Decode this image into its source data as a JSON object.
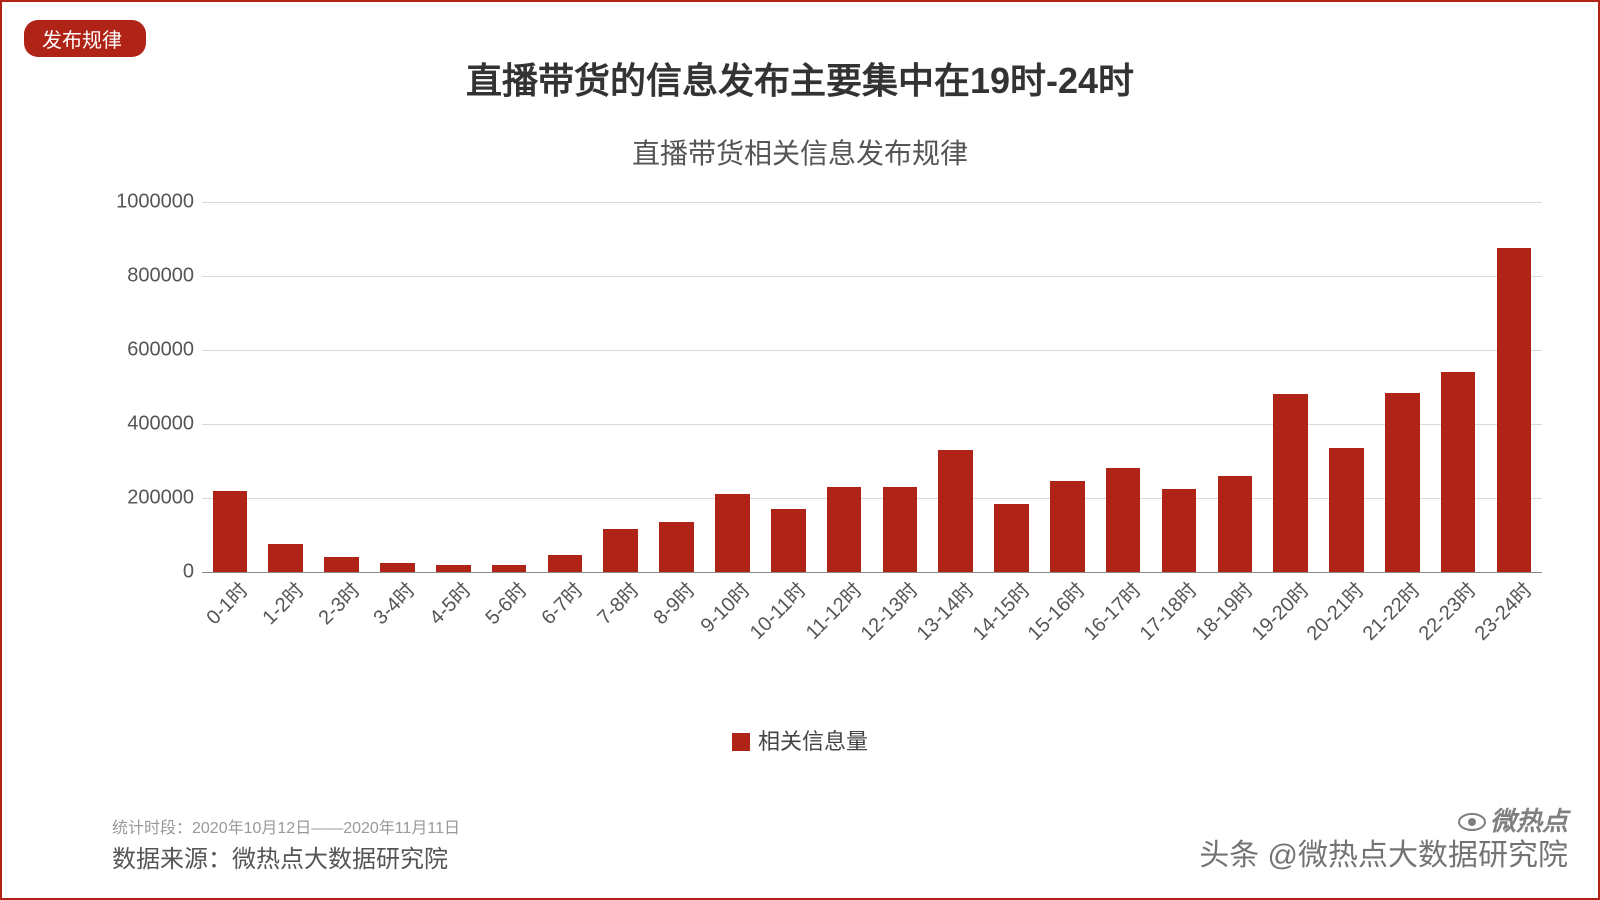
{
  "badge": "发布规律",
  "title_main": "直播带货的信息发布主要集中在19时-24时",
  "title_sub": "直播带货相关信息发布规律",
  "chart": {
    "type": "bar",
    "categories": [
      "0-1时",
      "1-2时",
      "2-3时",
      "3-4时",
      "4-5时",
      "5-6时",
      "6-7时",
      "7-8时",
      "8-9时",
      "9-10时",
      "10-11时",
      "11-12时",
      "12-13时",
      "13-14时",
      "14-15时",
      "15-16时",
      "16-17时",
      "17-18时",
      "18-19时",
      "19-20时",
      "20-21时",
      "21-22时",
      "22-23时",
      "23-24时"
    ],
    "values": [
      220000,
      75000,
      40000,
      25000,
      18000,
      18000,
      45000,
      115000,
      135000,
      210000,
      170000,
      230000,
      230000,
      330000,
      185000,
      245000,
      280000,
      225000,
      260000,
      480000,
      335000,
      485000,
      540000,
      875000
    ],
    "bar_color": "#b02418",
    "ylim": [
      0,
      1000000
    ],
    "ytick_step": 200000,
    "yticks": [
      "0",
      "200000",
      "400000",
      "600000",
      "800000",
      "1000000"
    ],
    "grid_color": "#d9d9d9",
    "axis_color": "#888888",
    "background_color": "#ffffff",
    "tick_fontsize": 20,
    "tick_color": "#555555",
    "xlabel_rotation": -45,
    "bar_width_ratio": 0.62
  },
  "legend": {
    "label": "相关信息量",
    "swatch_color": "#b02418"
  },
  "footer": {
    "period_label": "统计时段：2020年10月12日——2020年11月11日",
    "source_label": "数据来源：微热点大数据研究院"
  },
  "watermark": {
    "attribution": "头条 @微热点大数据研究院",
    "logo_text": "微热点"
  }
}
